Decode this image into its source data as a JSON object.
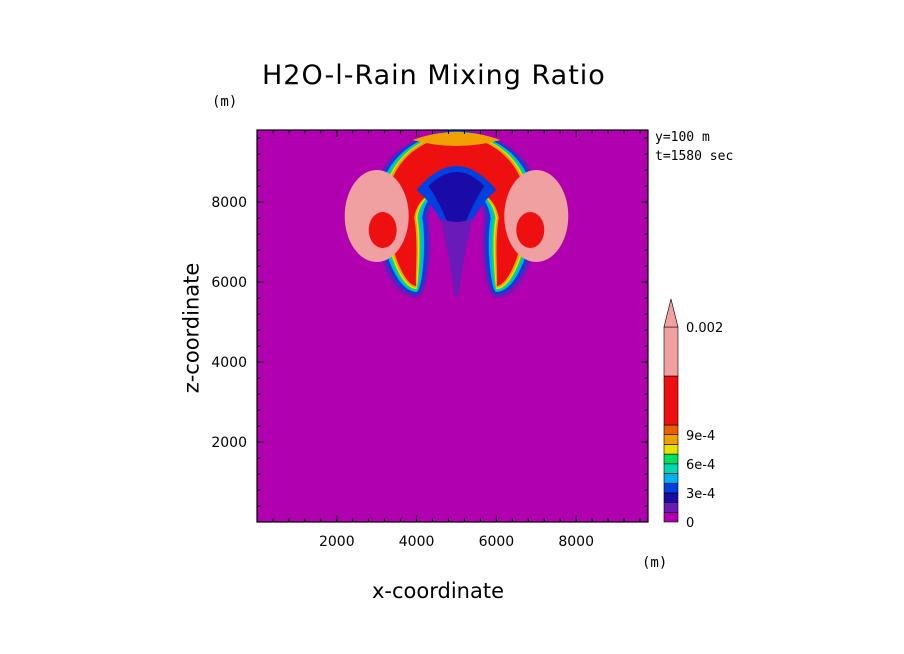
{
  "title": "H2O-l-Rain Mixing Ratio",
  "y_unit": "(m)",
  "x_unit": "(m)",
  "info": {
    "y_text": "y=100 m",
    "t_text": "t=1580 sec"
  },
  "colors": {
    "background": "#b000b0",
    "levels": [
      "#b000b0",
      "#6a1ab8",
      "#1a0aa8",
      "#0040e0",
      "#00b0f0",
      "#00d8b0",
      "#00e060",
      "#e8e000",
      "#f0a000",
      "#e86000",
      "#ee1010",
      "#f0a0a0"
    ]
  },
  "chart_data": {
    "type": "heatmap",
    "title": "H2O-l-Rain Mixing Ratio",
    "xlabel": "x-coordinate",
    "ylabel": "z-coordinate",
    "xlim": [
      0,
      9800
    ],
    "ylim": [
      0,
      9800
    ],
    "x_ticks": [
      2000,
      4000,
      6000,
      8000
    ],
    "y_ticks": [
      2000,
      4000,
      6000,
      8000
    ],
    "colorbar": {
      "labels": [
        "0",
        "3e-4",
        "6e-4",
        "9e-4",
        "0.002"
      ],
      "label_values": [
        0,
        0.0003,
        0.0006,
        0.0009,
        0.002
      ],
      "levels": [
        0,
        0.0001,
        0.0002,
        0.0003,
        0.0004,
        0.0005,
        0.0006,
        0.0007,
        0.0008,
        0.0009,
        0.001,
        0.002
      ],
      "extend": "max"
    },
    "features": [
      {
        "name": "left rotor",
        "cx": 3000,
        "cz": 7700,
        "peak": 0.002
      },
      {
        "name": "right rotor",
        "cx": 7000,
        "cz": 7700,
        "peak": 0.002
      },
      {
        "name": "cap",
        "cx": 5000,
        "cz": 9400,
        "peak": 0.001
      },
      {
        "name": "central core",
        "cx": 5000,
        "cz": 7600,
        "peak": 0.0003
      },
      {
        "name": "stem",
        "cx": 5000,
        "cz": 6300,
        "peak": 0.0001
      }
    ]
  }
}
